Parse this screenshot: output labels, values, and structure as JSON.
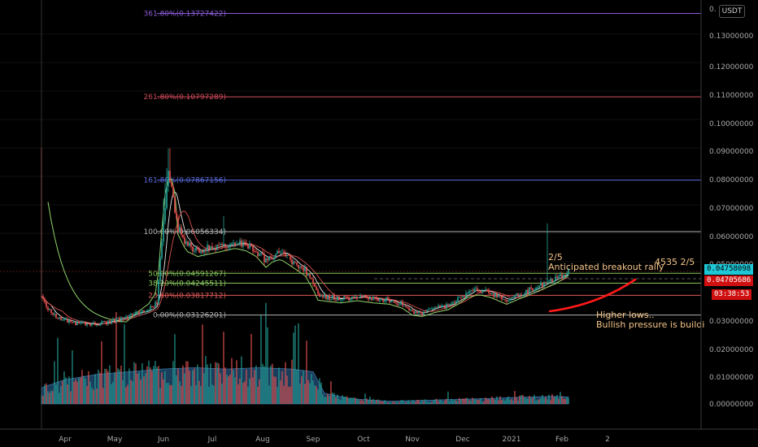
{
  "quote_currency": "USDT",
  "colors": {
    "up": "#26a69a",
    "down": "#ef5350",
    "ma_fast": "#e8e8e8",
    "ma_slow": "#d9534f",
    "ma_long": "#8fd46a",
    "volume_area": "#2f6fa8",
    "last_price_bg": "#1ec7d6",
    "price_bg": "#d01010"
  },
  "price_scale_labels": [
    "0.13000000",
    "0.12000000",
    "0.11000000",
    "0.10000000",
    "0.09000000",
    "0.08000000",
    "0.07000000",
    "0.06000000",
    "0.05000000",
    "0.03000000",
    "0.02000000",
    "0.01000000",
    "0.00000000"
  ],
  "time_labels": [
    {
      "label": "Apr",
      "t": 0.5
    },
    {
      "label": "May",
      "t": 31
    },
    {
      "label": "Jun",
      "t": 61
    },
    {
      "label": "Jul",
      "t": 91
    },
    {
      "label": "Aug",
      "t": 122
    },
    {
      "label": "Sep",
      "t": 153
    },
    {
      "label": "Oct",
      "t": 184
    },
    {
      "label": "Nov",
      "t": 214
    },
    {
      "label": "Dec",
      "t": 245
    },
    {
      "label": "2021",
      "t": 275
    },
    {
      "label": "Feb",
      "t": 306
    },
    {
      "label": "2",
      "t": 334
    }
  ],
  "fib_levels": [
    {
      "text": "361.80%(0.13727422)",
      "price": 0.13727422,
      "color": "#8b5bd6"
    },
    {
      "text": "261.80%(0.10797289)",
      "price": 0.10797289,
      "color": "#d04a5a"
    },
    {
      "text": "161.80%(0.07867156)",
      "price": 0.07867156,
      "color": "#5a6be0"
    },
    {
      "text": "100.00%(0.06056334)",
      "price": 0.06056334,
      "color": "#b0b0b0"
    },
    {
      "text": "50.00%(0.04591267)",
      "price": 0.04591267,
      "color": "#7fc45a"
    },
    {
      "text": "38.20%(0.04245511)",
      "price": 0.04245511,
      "color": "#8cc860"
    },
    {
      "text": "23.60%(0.03817712)",
      "price": 0.03817712,
      "color": "#e05a5a"
    },
    {
      "text": "0.00%(0.03126201)",
      "price": 0.03126201,
      "color": "#b0b0b0"
    }
  ],
  "annotations": {
    "date_note": "2/5",
    "breakout": "Anticipated breakout rally",
    "target": "4535 2/5",
    "higher_lows": "Higher lows..",
    "bullish": "Bullish pressure is buildi"
  },
  "price_tags": {
    "last_price": "0.04758098",
    "current": "0.04705686",
    "countdown": "03:38:53"
  },
  "chart_data": {
    "type": "candlestick",
    "price_axis": {
      "min": 0.0,
      "max": 0.14
    },
    "volume_axis_max": 0.028,
    "price_path": [
      [
        -14,
        0.038
      ],
      [
        -10,
        0.033
      ],
      [
        -4,
        0.03
      ],
      [
        5,
        0.0285
      ],
      [
        15,
        0.028
      ],
      [
        25,
        0.0285
      ],
      [
        35,
        0.03
      ],
      [
        45,
        0.032
      ],
      [
        52,
        0.033
      ],
      [
        57,
        0.036
      ],
      [
        61,
        0.065
      ],
      [
        64,
        0.08
      ],
      [
        67,
        0.072
      ],
      [
        70,
        0.062
      ],
      [
        75,
        0.056
      ],
      [
        82,
        0.054
      ],
      [
        90,
        0.055
      ],
      [
        98,
        0.056
      ],
      [
        105,
        0.057
      ],
      [
        112,
        0.056
      ],
      [
        118,
        0.054
      ],
      [
        124,
        0.05
      ],
      [
        128,
        0.052
      ],
      [
        133,
        0.053
      ],
      [
        138,
        0.051
      ],
      [
        143,
        0.049
      ],
      [
        148,
        0.047
      ],
      [
        153,
        0.042
      ],
      [
        156,
        0.038
      ],
      [
        162,
        0.0375
      ],
      [
        170,
        0.037
      ],
      [
        180,
        0.0378
      ],
      [
        190,
        0.037
      ],
      [
        200,
        0.0365
      ],
      [
        208,
        0.035
      ],
      [
        214,
        0.0325
      ],
      [
        220,
        0.032
      ],
      [
        228,
        0.0335
      ],
      [
        236,
        0.0345
      ],
      [
        242,
        0.0365
      ],
      [
        248,
        0.039
      ],
      [
        255,
        0.04
      ],
      [
        262,
        0.039
      ],
      [
        268,
        0.0375
      ],
      [
        272,
        0.0365
      ],
      [
        278,
        0.038
      ],
      [
        284,
        0.0395
      ],
      [
        290,
        0.041
      ],
      [
        296,
        0.0425
      ],
      [
        302,
        0.044
      ],
      [
        306,
        0.0455
      ],
      [
        310,
        0.0471
      ]
    ],
    "volume_profile": [
      [
        -14,
        0.006
      ],
      [
        0,
        0.009
      ],
      [
        20,
        0.011
      ],
      [
        40,
        0.012
      ],
      [
        60,
        0.013
      ],
      [
        80,
        0.0135
      ],
      [
        100,
        0.013
      ],
      [
        120,
        0.0135
      ],
      [
        140,
        0.013
      ],
      [
        153,
        0.012
      ],
      [
        160,
        0.004
      ],
      [
        175,
        0.002
      ],
      [
        200,
        0.001
      ],
      [
        230,
        0.0015
      ],
      [
        260,
        0.002
      ],
      [
        280,
        0.0025
      ],
      [
        300,
        0.0028
      ],
      [
        310,
        0.0026
      ]
    ]
  }
}
